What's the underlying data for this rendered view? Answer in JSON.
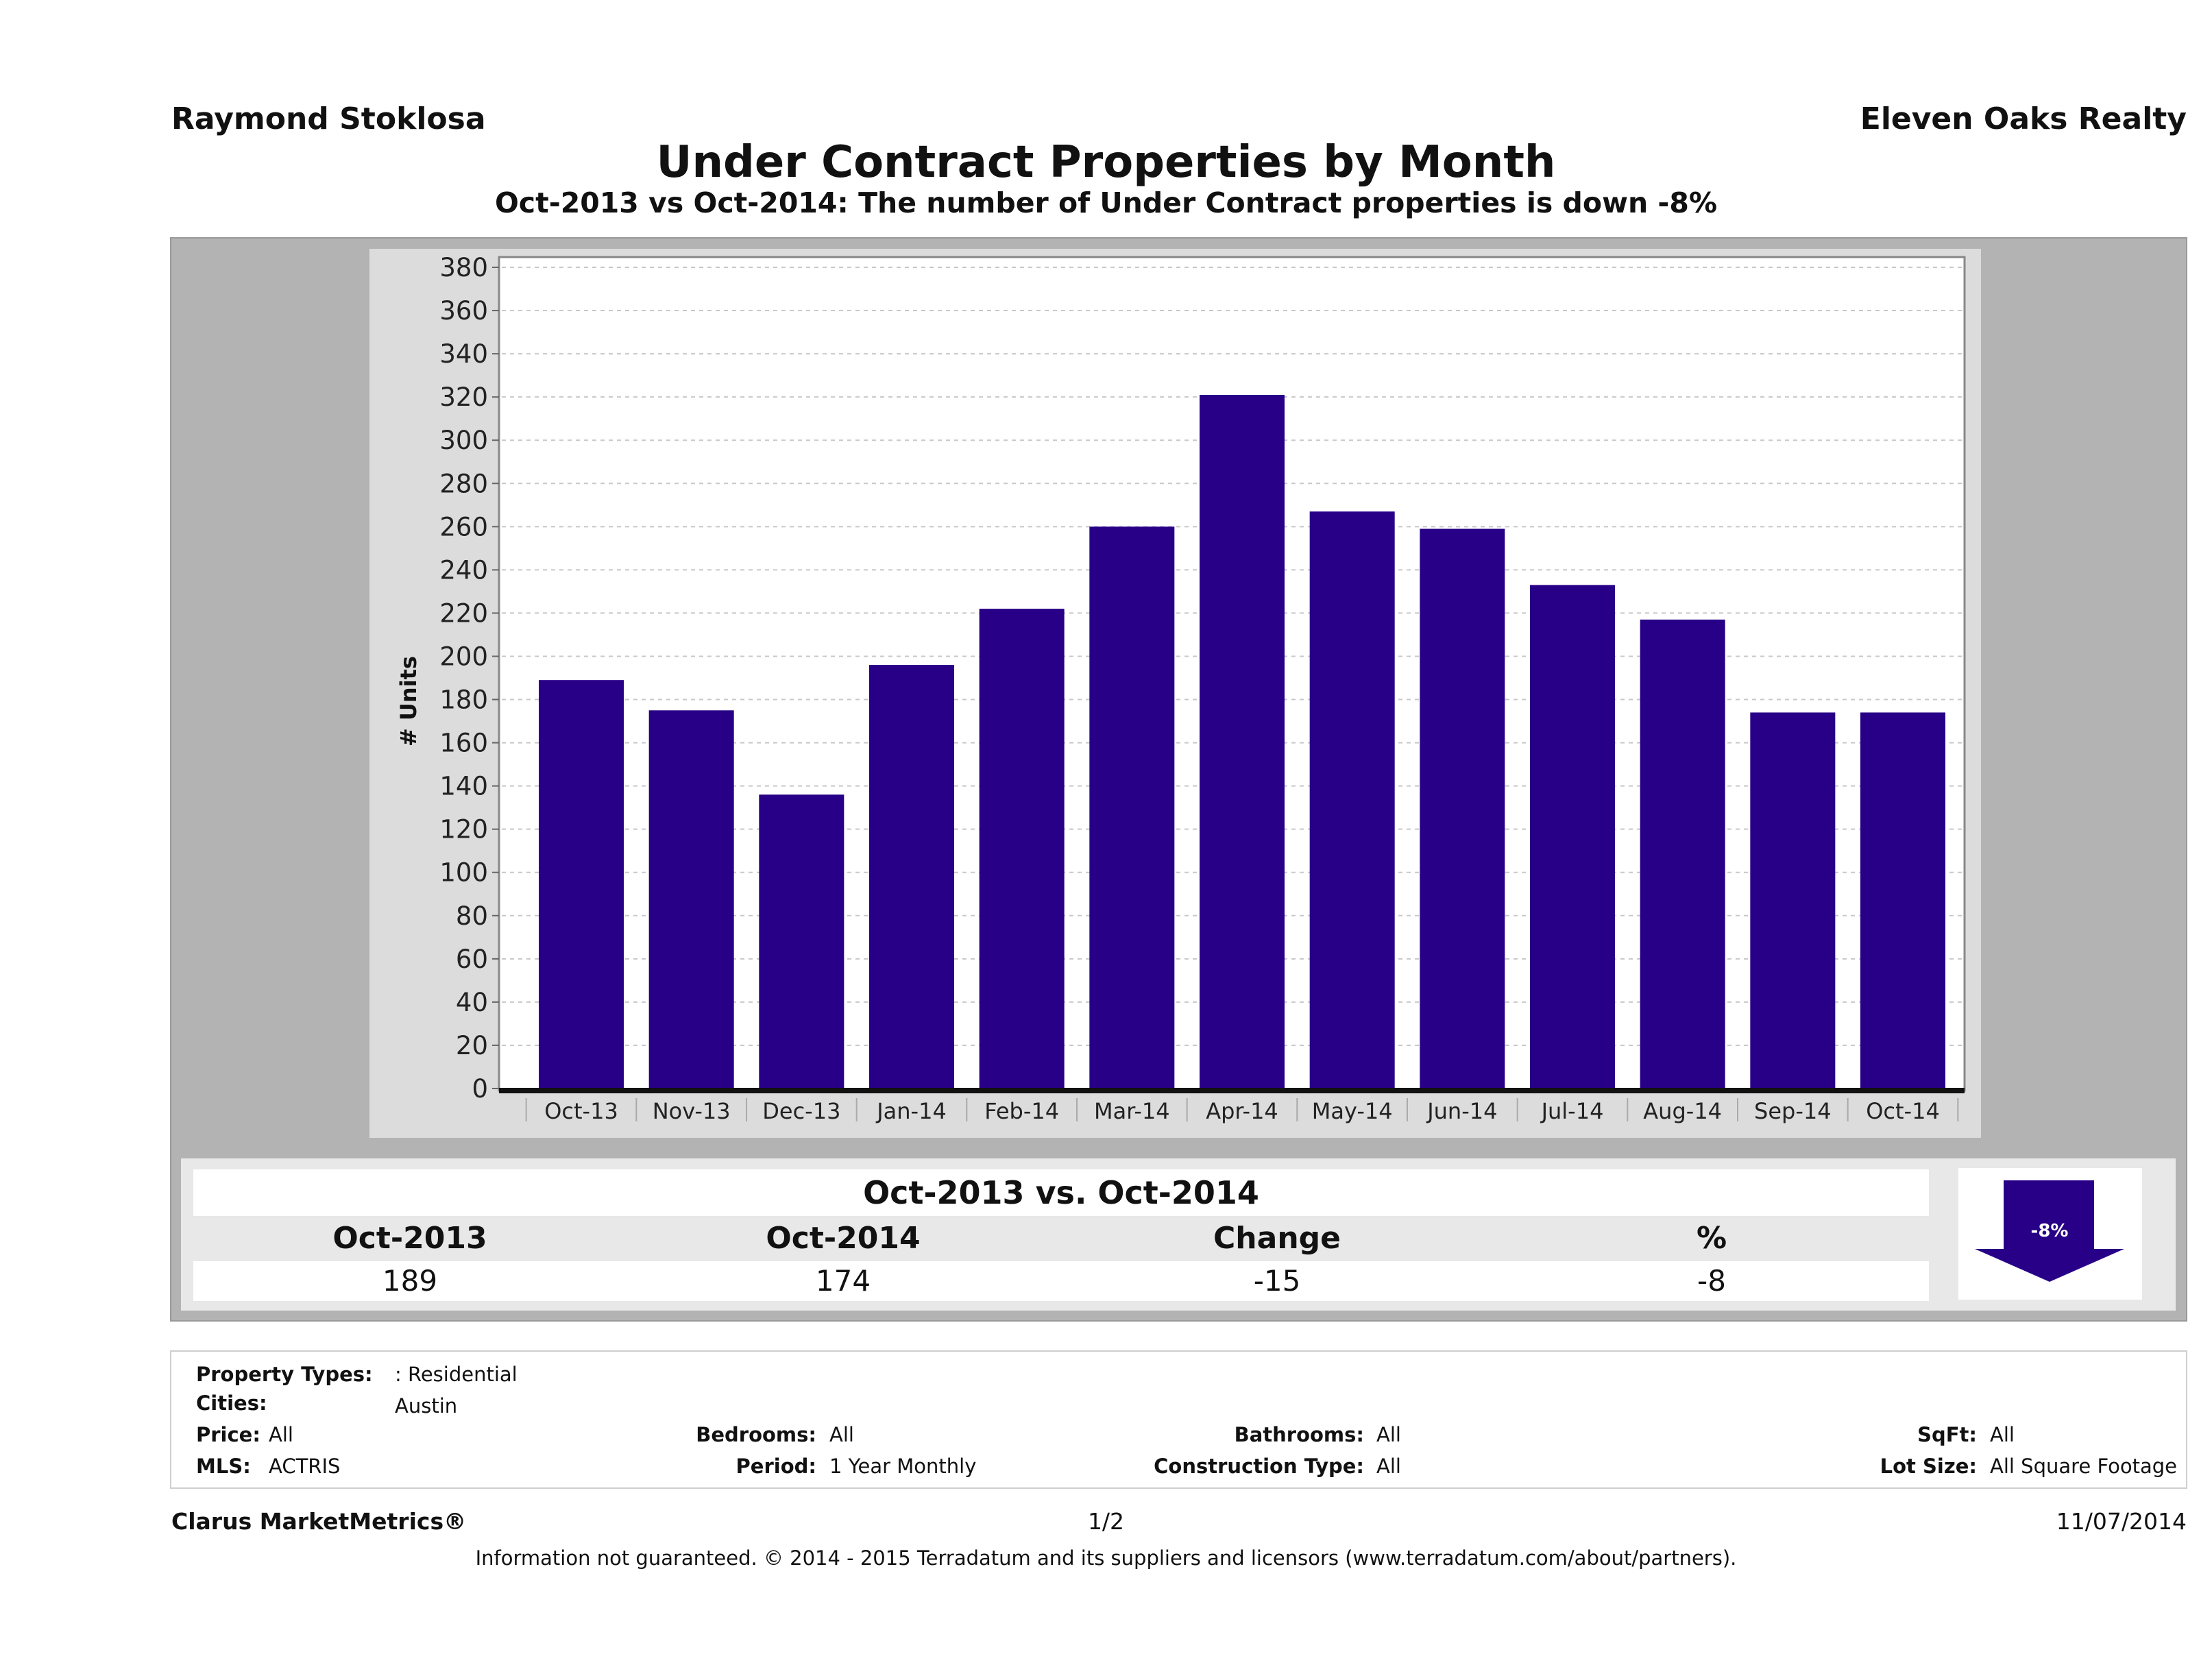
{
  "header": {
    "agent_name": "Raymond Stoklosa",
    "company_name": "Eleven Oaks Realty",
    "title": "Under Contract Properties by Month",
    "subtitle": "Oct-2013 vs Oct-2014: The number of Under Contract  properties is down -8%"
  },
  "colors": {
    "bar": "#270087",
    "panel_outer": "#b3b3b3",
    "panel_chart": "#dcdcdc",
    "plot_bg": "#ffffff",
    "arrow": "#270087"
  },
  "chart_data": {
    "type": "bar",
    "title": "Under Contract Properties by Month",
    "xlabel": "",
    "ylabel": "# Units",
    "ylim": [
      0,
      380
    ],
    "ytick_step": 20,
    "yticks": [
      0,
      20,
      40,
      60,
      80,
      100,
      120,
      140,
      160,
      180,
      200,
      220,
      240,
      260,
      280,
      300,
      320,
      340,
      360,
      380
    ],
    "grid": true,
    "legend": "none",
    "categories": [
      "Oct-13",
      "Nov-13",
      "Dec-13",
      "Jan-14",
      "Feb-14",
      "Mar-14",
      "Apr-14",
      "May-14",
      "Jun-14",
      "Jul-14",
      "Aug-14",
      "Sep-14",
      "Oct-14"
    ],
    "values": [
      189,
      175,
      136,
      196,
      222,
      260,
      321,
      267,
      259,
      233,
      217,
      174,
      174
    ]
  },
  "comparison": {
    "title": "Oct-2013 vs. Oct-2014",
    "headers": [
      "Oct-2013",
      "Oct-2014",
      "Change",
      "%"
    ],
    "values": [
      "189",
      "174",
      "-15",
      "-8"
    ],
    "badge": {
      "label": "-8%",
      "direction": "down"
    }
  },
  "criteria": {
    "property_types": {
      "label": "Property Types:",
      "value": ": Residential"
    },
    "cities": {
      "label": "Cities:",
      "value": "Austin"
    },
    "price": {
      "label": "Price:",
      "value": "All"
    },
    "mls": {
      "label": "MLS:",
      "value": "ACTRIS"
    },
    "bedrooms": {
      "label": "Bedrooms:",
      "value": "All"
    },
    "period": {
      "label": "Period:",
      "value": "1 Year Monthly"
    },
    "bathrooms": {
      "label": "Bathrooms:",
      "value": "All"
    },
    "construction_type": {
      "label": "Construction Type:",
      "value": "All"
    },
    "sqft": {
      "label": "SqFt:",
      "value": "All"
    },
    "lot_size": {
      "label": "Lot Size:",
      "value": "All Square Footage"
    }
  },
  "footer": {
    "brand": "Clarus MarketMetrics®",
    "page": "1/2",
    "date": "11/07/2014",
    "disclaimer": "Information not guaranteed. © 2014 - 2015 Terradatum and its suppliers and licensors (www.terradatum.com/about/partners)."
  }
}
